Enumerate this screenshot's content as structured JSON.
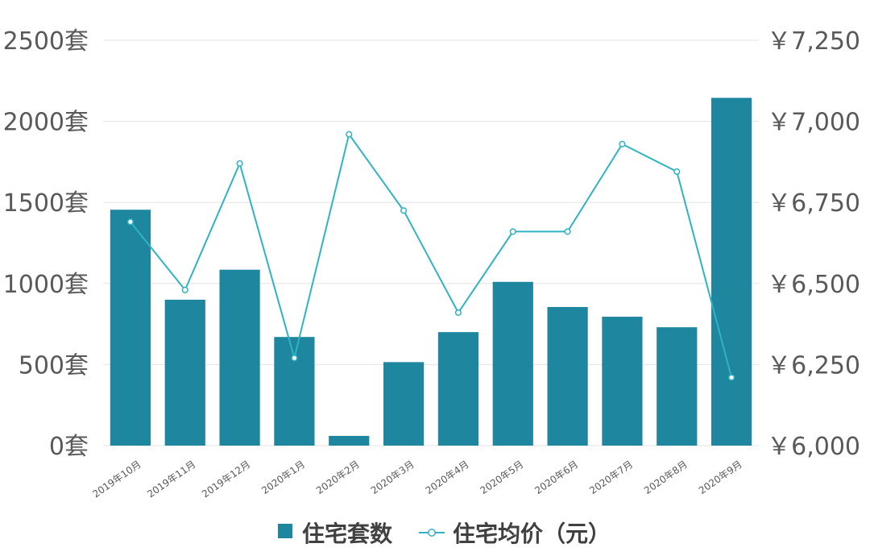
{
  "chart_data": {
    "type": "bar",
    "categories": [
      "2019年10月",
      "2019年11月",
      "2019年12月",
      "2020年1月",
      "2020年2月",
      "2020年3月",
      "2020年4月",
      "2020年5月",
      "2020年6月",
      "2020年7月",
      "2020年8月",
      "2020年9月"
    ],
    "series": [
      {
        "name": "住宅套数",
        "type": "bar",
        "axis": "left",
        "values": [
          1455,
          900,
          1085,
          670,
          60,
          515,
          700,
          1010,
          855,
          795,
          730,
          2145
        ],
        "color": "#1f86a0"
      },
      {
        "name": "住宅均价（元）",
        "type": "line",
        "axis": "right",
        "values": [
          6690,
          6480,
          6870,
          6270,
          6960,
          6725,
          6410,
          6660,
          6660,
          6930,
          6845,
          6210
        ],
        "color": "#2fb3c4"
      }
    ],
    "left_axis": {
      "ylim": [
        0,
        2500
      ],
      "ticks": [
        "0套",
        "500套",
        "1000套",
        "1500套",
        "2000套",
        "2500套"
      ]
    },
    "right_axis": {
      "ylim": [
        6000,
        7250
      ],
      "ticks": [
        "￥6,000",
        "￥6,250",
        "￥6,500",
        "￥6,750",
        "￥7,000",
        "￥7,250"
      ]
    },
    "grid": true,
    "legend": "bottom-center"
  }
}
